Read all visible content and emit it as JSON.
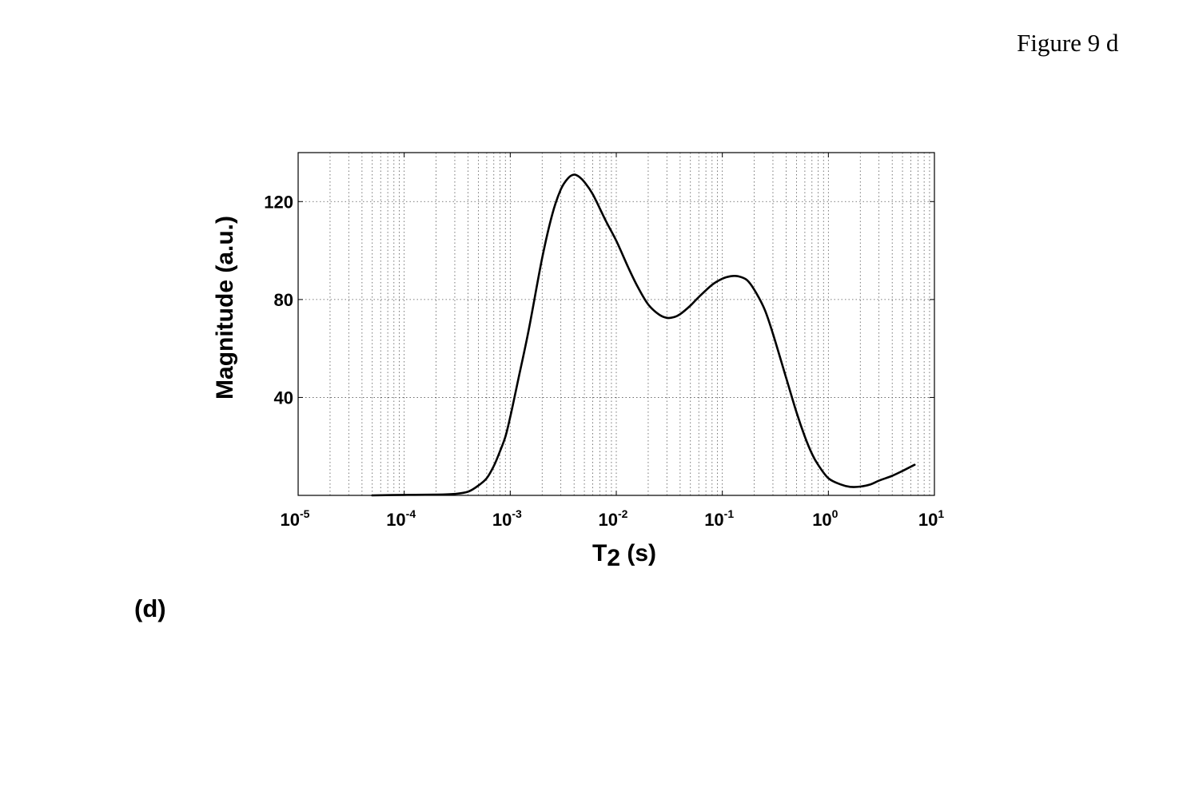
{
  "figure_caption": "Figure 9 d",
  "panel_label": "(d)",
  "chart_data": {
    "type": "line",
    "title": "",
    "xlabel": "T2 (s)",
    "ylabel": "Magnitude (a.u.)",
    "xscale": "log",
    "xlim": [
      1e-05,
      10
    ],
    "ylim": [
      0,
      140
    ],
    "grid": true,
    "x_ticks": [
      {
        "base": "10",
        "exp": "-5",
        "value": 1e-05
      },
      {
        "base": "10",
        "exp": "-4",
        "value": 0.0001
      },
      {
        "base": "10",
        "exp": "-3",
        "value": 0.001
      },
      {
        "base": "10",
        "exp": "-2",
        "value": 0.01
      },
      {
        "base": "10",
        "exp": "-1",
        "value": 0.1
      },
      {
        "base": "10",
        "exp": "0",
        "value": 1
      },
      {
        "base": "10",
        "exp": "1",
        "value": 10
      }
    ],
    "y_ticks": [
      40,
      80,
      120
    ],
    "series": [
      {
        "color": "#000000",
        "points": [
          [
            5e-05,
            0.0
          ],
          [
            0.0001,
            0.2
          ],
          [
            0.0002,
            0.3
          ],
          [
            0.0003,
            0.6
          ],
          [
            0.0004,
            1.5
          ],
          [
            0.0005,
            4.0
          ],
          [
            0.0006,
            7.0
          ],
          [
            0.0007,
            12.0
          ],
          [
            0.0008,
            18.0
          ],
          [
            0.0009,
            24.0
          ],
          [
            0.001,
            32.0
          ],
          [
            0.0012,
            48.0
          ],
          [
            0.0015,
            68.0
          ],
          [
            0.002,
            97.0
          ],
          [
            0.0025,
            115.0
          ],
          [
            0.003,
            125.0
          ],
          [
            0.0035,
            129.5
          ],
          [
            0.004,
            131.0
          ],
          [
            0.0045,
            130.0
          ],
          [
            0.005,
            128.0
          ],
          [
            0.006,
            123.0
          ],
          [
            0.008,
            112.0
          ],
          [
            0.01,
            104.0
          ],
          [
            0.013,
            93.0
          ],
          [
            0.016,
            85.0
          ],
          [
            0.02,
            78.0
          ],
          [
            0.025,
            74.0
          ],
          [
            0.03,
            72.5
          ],
          [
            0.035,
            72.8
          ],
          [
            0.04,
            74.0
          ],
          [
            0.05,
            77.5
          ],
          [
            0.06,
            81.0
          ],
          [
            0.08,
            86.0
          ],
          [
            0.1,
            88.5
          ],
          [
            0.12,
            89.5
          ],
          [
            0.14,
            89.5
          ],
          [
            0.17,
            88.0
          ],
          [
            0.2,
            84.0
          ],
          [
            0.25,
            76.0
          ],
          [
            0.3,
            66.0
          ],
          [
            0.4,
            48.0
          ],
          [
            0.5,
            34.0
          ],
          [
            0.6,
            24.0
          ],
          [
            0.7,
            17.0
          ],
          [
            0.8,
            12.5
          ],
          [
            1.0,
            7.0
          ],
          [
            1.3,
            4.5
          ],
          [
            1.6,
            3.5
          ],
          [
            2.0,
            3.6
          ],
          [
            2.5,
            4.5
          ],
          [
            3.0,
            6.0
          ],
          [
            4.0,
            8.0
          ],
          [
            5.0,
            10.0
          ],
          [
            6.5,
            12.5
          ]
        ]
      }
    ]
  }
}
